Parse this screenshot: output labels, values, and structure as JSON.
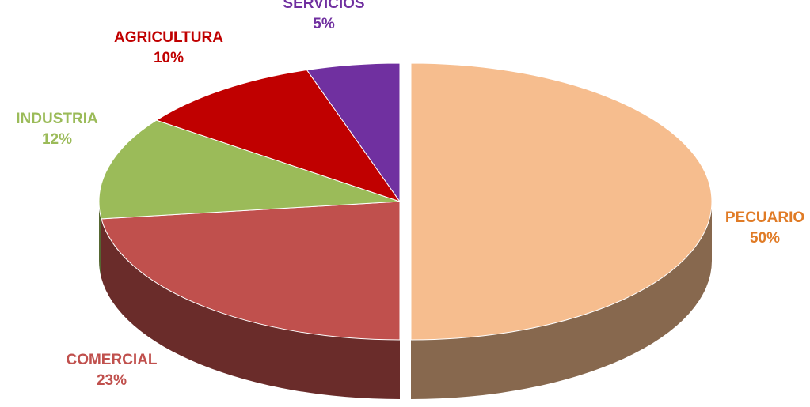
{
  "chart_data": {
    "type": "pie",
    "categories": [
      "PECUARIO",
      "COMERCIAL",
      "INDUSTRIA",
      "AGRICULTURA",
      "SERVICIOS"
    ],
    "values": [
      50,
      23,
      12,
      10,
      5
    ],
    "value_labels": [
      "50%",
      "23%",
      "12%",
      "10%",
      "5%"
    ],
    "colors": [
      "#f6bd8e",
      "#c0504d",
      "#9bbb59",
      "#c00000",
      "#7030a0"
    ],
    "start_angle": 90,
    "direction": "clockwise"
  }
}
